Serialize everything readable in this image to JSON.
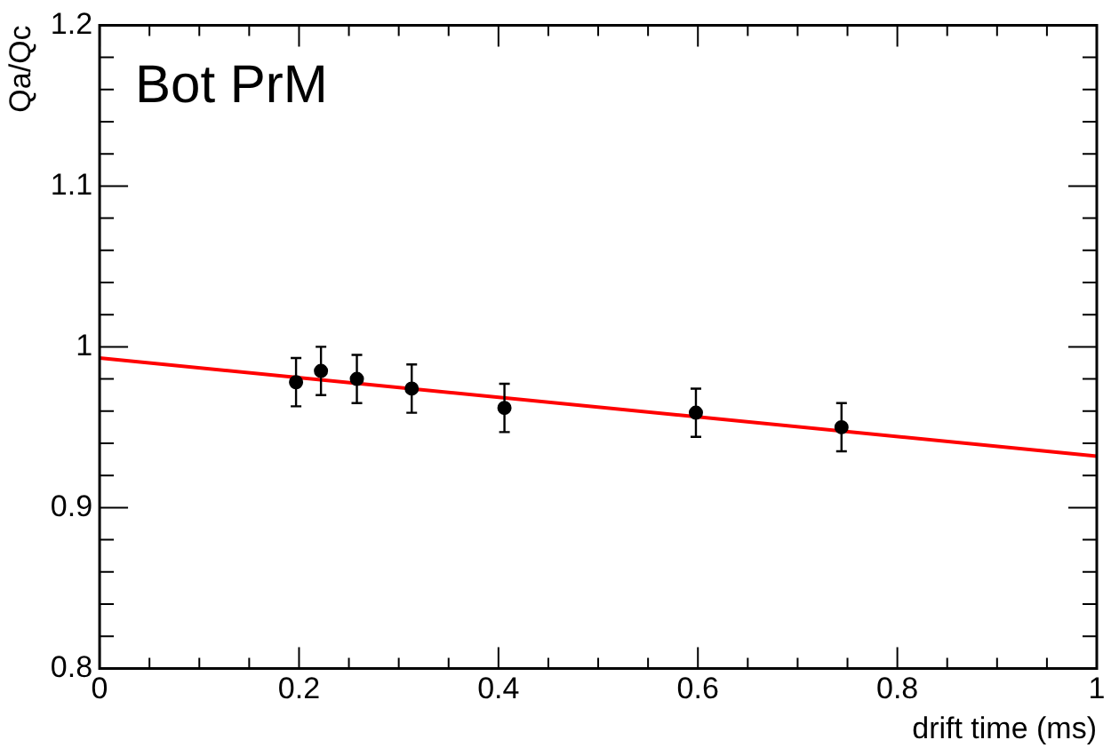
{
  "chart_data": {
    "type": "scatter",
    "title": "Bot PrM",
    "xlabel": "drift time (ms)",
    "ylabel": "Qa/Qc",
    "xlim": [
      0,
      1
    ],
    "ylim": [
      0.8,
      1.2
    ],
    "xticks": [
      0,
      {
        "value": 0.05,
        "label": null
      },
      {
        "value": 0.1,
        "label": null
      },
      {
        "value": 0.15,
        "label": null
      },
      0.2,
      {
        "value": 0.25,
        "label": null
      },
      {
        "value": 0.3,
        "label": null
      },
      {
        "value": 0.35,
        "label": null
      },
      0.4,
      {
        "value": 0.45,
        "label": null
      },
      {
        "value": 0.5,
        "label": null
      },
      {
        "value": 0.55,
        "label": null
      },
      0.6,
      {
        "value": 0.65,
        "label": null
      },
      {
        "value": 0.7,
        "label": null
      },
      {
        "value": 0.75,
        "label": null
      },
      0.8,
      {
        "value": 0.85,
        "label": null
      },
      {
        "value": 0.9,
        "label": null
      },
      {
        "value": 0.95,
        "label": null
      },
      1
    ],
    "yticks": [
      0.8,
      {
        "value": 0.82,
        "label": null
      },
      {
        "value": 0.84,
        "label": null
      },
      {
        "value": 0.86,
        "label": null
      },
      {
        "value": 0.88,
        "label": null
      },
      0.9,
      {
        "value": 0.92,
        "label": null
      },
      {
        "value": 0.94,
        "label": null
      },
      {
        "value": 0.96,
        "label": null
      },
      {
        "value": 0.98,
        "label": null
      },
      1,
      {
        "value": 1.02,
        "label": null
      },
      {
        "value": 1.04,
        "label": null
      },
      {
        "value": 1.06,
        "label": null
      },
      {
        "value": 1.08,
        "label": null
      },
      1.1,
      {
        "value": 1.12,
        "label": null
      },
      {
        "value": 1.14,
        "label": null
      },
      {
        "value": 1.16,
        "label": null
      },
      {
        "value": 1.18,
        "label": null
      },
      1.2
    ],
    "grid": false,
    "legend": false,
    "series": [
      {
        "marker": "circle",
        "color": "#000000",
        "x": [
          0.197,
          0.222,
          0.258,
          0.313,
          0.406,
          0.598,
          0.744
        ],
        "values": [
          0.978,
          0.985,
          0.98,
          0.974,
          0.962,
          0.959,
          0.95
        ],
        "errors": [
          0.015,
          0.015,
          0.015,
          0.015,
          0.015,
          0.015,
          0.015
        ]
      },
      {
        "type": "line",
        "marker": "none",
        "color": "#ff0000",
        "x": [
          0,
          1
        ],
        "values": [
          0.993,
          0.932
        ]
      }
    ]
  }
}
